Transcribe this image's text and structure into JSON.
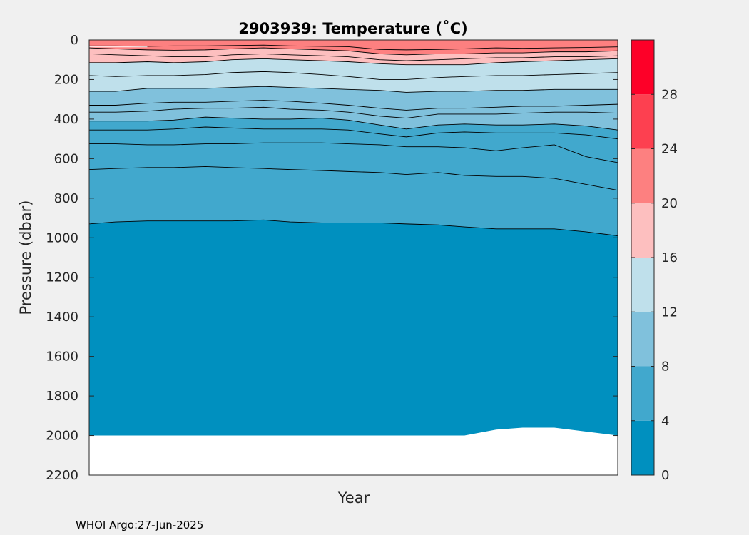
{
  "chart_data": {
    "type": "area",
    "title": "2903939:  Temperature (˚C)",
    "xlabel": "Year",
    "ylabel": "Pressure (dbar)",
    "ylim": [
      0,
      2200
    ],
    "y_reversed": true,
    "y_ticks": [
      0,
      200,
      400,
      600,
      800,
      1000,
      1200,
      1400,
      1600,
      1800,
      2000,
      2200
    ],
    "x_range": [
      0,
      1
    ],
    "grid": false,
    "colorbar": {
      "range": [
        0,
        32
      ],
      "ticks": [
        0,
        4,
        8,
        12,
        16,
        20,
        24,
        28
      ],
      "bands": [
        {
          "from": 0,
          "to": 4,
          "color": "#0090bf"
        },
        {
          "from": 4,
          "to": 8,
          "color": "#41a8cd"
        },
        {
          "from": 8,
          "to": 12,
          "color": "#80c1dc"
        },
        {
          "from": 12,
          "to": 16,
          "color": "#bfe0eb"
        },
        {
          "from": 16,
          "to": 20,
          "color": "#fdbfbf"
        },
        {
          "from": 20,
          "to": 24,
          "color": "#fd8080"
        },
        {
          "from": 24,
          "to": 28,
          "color": "#fd4050"
        },
        {
          "from": 28,
          "to": 32,
          "color": "#fd0028"
        }
      ]
    },
    "x_samples": [
      0,
      0.05,
      0.11,
      0.16,
      0.22,
      0.27,
      0.33,
      0.38,
      0.44,
      0.49,
      0.55,
      0.6,
      0.66,
      0.71,
      0.77,
      0.82,
      0.88,
      0.94,
      1.0
    ],
    "fill_bands": [
      {
        "color": "#fd8080",
        "top": [
          0,
          0,
          0,
          0,
          0,
          0,
          0,
          0,
          0,
          0,
          0,
          0,
          0,
          0,
          0,
          0,
          0,
          0,
          0
        ]
      },
      {
        "color": "#fdbfbf",
        "top": [
          40,
          45,
          50,
          52,
          50,
          45,
          40,
          45,
          50,
          55,
          70,
          75,
          70,
          70,
          65,
          65,
          60,
          60,
          55
        ]
      },
      {
        "color": "#bfe0eb",
        "top": [
          115,
          115,
          110,
          115,
          110,
          100,
          95,
          100,
          105,
          110,
          120,
          125,
          125,
          125,
          115,
          110,
          105,
          100,
          95
        ]
      },
      {
        "color": "#80c1dc",
        "top": [
          260,
          260,
          245,
          245,
          245,
          240,
          235,
          240,
          245,
          250,
          255,
          265,
          260,
          260,
          255,
          255,
          250,
          250,
          250
        ]
      },
      {
        "color": "#41a8cd",
        "top": [
          410,
          410,
          410,
          405,
          390,
          395,
          400,
          400,
          395,
          405,
          430,
          450,
          430,
          425,
          430,
          430,
          425,
          435,
          455
        ]
      },
      {
        "color": "#0090bf",
        "top": [
          930,
          920,
          915,
          915,
          915,
          915,
          910,
          920,
          925,
          925,
          925,
          930,
          935,
          945,
          955,
          955,
          955,
          970,
          990
        ]
      },
      {
        "color": "#ffffff",
        "top": [
          2000,
          2000,
          2000,
          2000,
          2000,
          2000,
          2000,
          2000,
          2000,
          2000,
          2000,
          2000,
          2000,
          2000,
          1970,
          1960,
          1960,
          1980,
          2000
        ]
      }
    ],
    "contours": [
      [
        30,
        30,
        32,
        30,
        30,
        28,
        26,
        30,
        32,
        34,
        48,
        50,
        48,
        45,
        40,
        42,
        40,
        38,
        35
      ],
      [
        40,
        45,
        50,
        52,
        50,
        45,
        40,
        45,
        50,
        55,
        70,
        75,
        70,
        70,
        65,
        65,
        60,
        60,
        55
      ],
      [
        70,
        75,
        80,
        85,
        85,
        75,
        70,
        75,
        80,
        85,
        100,
        105,
        100,
        95,
        90,
        90,
        85,
        85,
        80
      ],
      [
        115,
        115,
        110,
        115,
        110,
        100,
        95,
        100,
        105,
        110,
        120,
        125,
        125,
        125,
        115,
        110,
        105,
        100,
        95
      ],
      [
        180,
        185,
        180,
        180,
        175,
        165,
        160,
        165,
        175,
        185,
        200,
        200,
        190,
        185,
        180,
        180,
        175,
        170,
        165
      ],
      [
        260,
        260,
        245,
        245,
        245,
        240,
        235,
        240,
        245,
        250,
        255,
        265,
        260,
        260,
        255,
        255,
        250,
        250,
        250
      ],
      [
        330,
        330,
        320,
        315,
        315,
        310,
        305,
        310,
        320,
        330,
        345,
        355,
        345,
        345,
        340,
        335,
        335,
        330,
        325
      ],
      [
        365,
        365,
        360,
        350,
        345,
        345,
        340,
        350,
        355,
        365,
        385,
        395,
        375,
        375,
        375,
        370,
        365,
        365,
        370
      ],
      [
        410,
        410,
        410,
        405,
        390,
        395,
        400,
        400,
        395,
        405,
        430,
        450,
        430,
        425,
        430,
        430,
        425,
        435,
        455
      ],
      [
        455,
        455,
        455,
        450,
        440,
        445,
        450,
        450,
        450,
        455,
        475,
        490,
        470,
        465,
        470,
        470,
        470,
        480,
        500
      ],
      [
        525,
        525,
        530,
        530,
        525,
        525,
        520,
        520,
        520,
        525,
        530,
        540,
        540,
        545,
        560,
        545,
        530,
        590,
        620
      ],
      [
        655,
        650,
        645,
        645,
        640,
        645,
        650,
        655,
        660,
        665,
        670,
        680,
        670,
        685,
        690,
        690,
        700,
        730,
        760
      ],
      [
        930,
        920,
        915,
        915,
        915,
        915,
        910,
        920,
        925,
        925,
        925,
        930,
        935,
        945,
        955,
        955,
        955,
        970,
        990
      ]
    ],
    "white_streak": {
      "x": [
        0.0,
        0.11
      ],
      "p": 35,
      "color": "#ffffff"
    }
  },
  "footer": {
    "text": "WHOI Argo:27-Jun-2025"
  }
}
